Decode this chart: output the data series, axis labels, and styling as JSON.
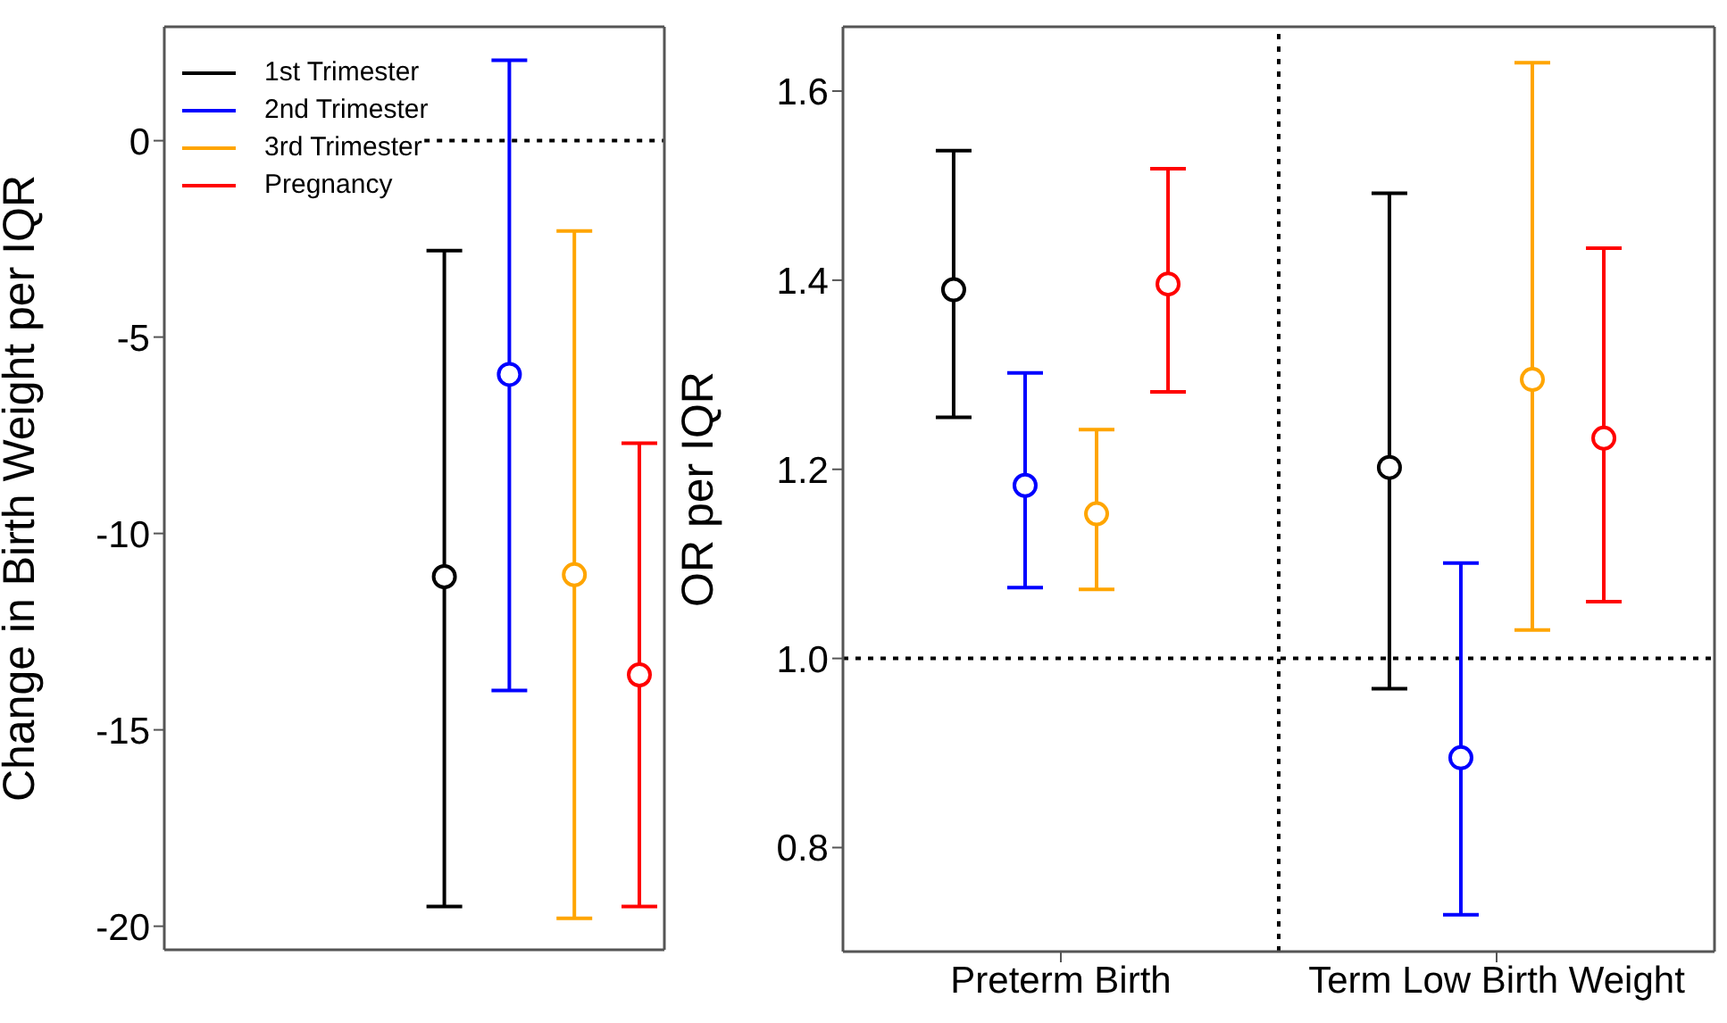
{
  "chart_data": [
    {
      "type": "scatter",
      "categories": [
        null
      ],
      "ylabel": "Change in Birth Weight per IQR",
      "ylim": [
        -20.6,
        2.9
      ],
      "yticks": [
        -20,
        -15,
        -10,
        -5,
        0
      ],
      "tick_labels": "y",
      "legend": "top left",
      "marker": "circle",
      "ref_lines": [
        {
          "axis": "y",
          "value": 0,
          "line_style": "dotted"
        }
      ],
      "series": [
        {
          "name": "1st Trimester",
          "color": "#000000",
          "values": [
            -11.1
          ],
          "errors": [
            [
              -19.5,
              -2.8
            ]
          ]
        },
        {
          "name": "2nd Trimester",
          "color": "#0000ff",
          "values": [
            -5.95
          ],
          "errors": [
            [
              -14,
              2.05
            ]
          ]
        },
        {
          "name": "3rd Trimester",
          "color": "#ffa500",
          "values": [
            -11.05
          ],
          "errors": [
            [
              -19.8,
              -2.3
            ]
          ]
        },
        {
          "name": "Pregnancy",
          "color": "#ff0000",
          "values": [
            -13.6
          ],
          "errors": [
            [
              -19.5,
              -7.7
            ]
          ]
        }
      ]
    },
    {
      "type": "scatter",
      "categories": [
        "Preterm Birth",
        "Term Low Birth Weight"
      ],
      "ylabel": "OR per IQR",
      "ylim": [
        0.69,
        1.668
      ],
      "yticks": [
        0.8,
        {
          "value": 1,
          "label": "1.0"
        },
        1.2,
        1.4,
        1.6
      ],
      "legend": false,
      "marker": "circle",
      "ref_lines": [
        {
          "axis": "y",
          "value": 1,
          "line_style": "dotted"
        }
      ],
      "series": [
        {
          "color": "#000000",
          "values": [
            1.39,
            1.202
          ],
          "errors": [
            [
              1.255,
              1.537
            ],
            [
              0.968,
              1.492
            ]
          ]
        },
        {
          "color": "#0000ff",
          "values": [
            1.183,
            0.895
          ],
          "errors": [
            [
              1.075,
              1.302
            ],
            [
              0.729,
              1.101
            ]
          ]
        },
        {
          "color": "#ffa500",
          "values": [
            1.153,
            1.295
          ],
          "errors": [
            [
              1.073,
              1.242
            ],
            [
              1.03,
              1.63
            ]
          ]
        },
        {
          "color": "#ff0000",
          "values": [
            1.396,
            1.233
          ],
          "errors": [
            [
              1.282,
              1.518
            ],
            [
              1.06,
              1.434
            ]
          ]
        }
      ]
    }
  ]
}
